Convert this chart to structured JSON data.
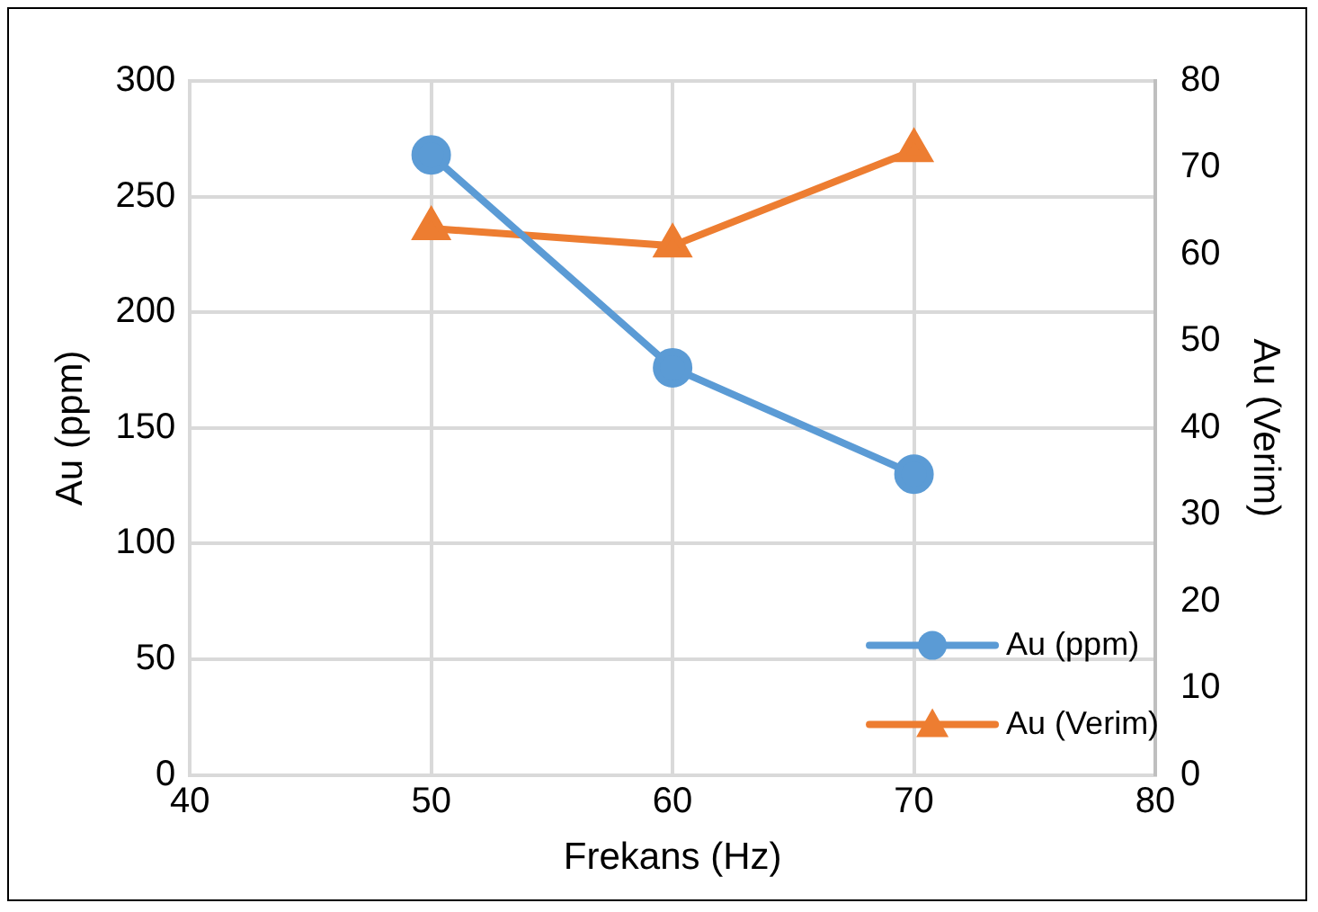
{
  "chart_data": {
    "type": "line",
    "xlabel": "Frekans (Hz)",
    "ylabel": "Au (ppm)",
    "y2label": "Au (Verim)",
    "x": [
      50,
      60,
      70
    ],
    "series": [
      {
        "name": "Au (ppm)",
        "color": "#5b9bd5",
        "values": [
          268,
          176,
          130
        ],
        "marker": "circle"
      },
      {
        "name": "Au (Verim)",
        "color": "#ed7d31",
        "values": [
          63,
          61,
          72
        ],
        "marker": "triangle",
        "axis": "y2"
      }
    ],
    "xlim": [
      40,
      80
    ],
    "xticks": [
      40,
      50,
      60,
      70,
      80
    ],
    "ylim": [
      0,
      300
    ],
    "yticks": [
      0,
      50,
      100,
      150,
      200,
      250,
      300
    ],
    "y2lim": [
      0,
      80
    ],
    "y2ticks": [
      0,
      10,
      20,
      30,
      40,
      50,
      60,
      70,
      80
    ],
    "grid": true,
    "legend": "bottom right",
    "line_style": "solid"
  }
}
